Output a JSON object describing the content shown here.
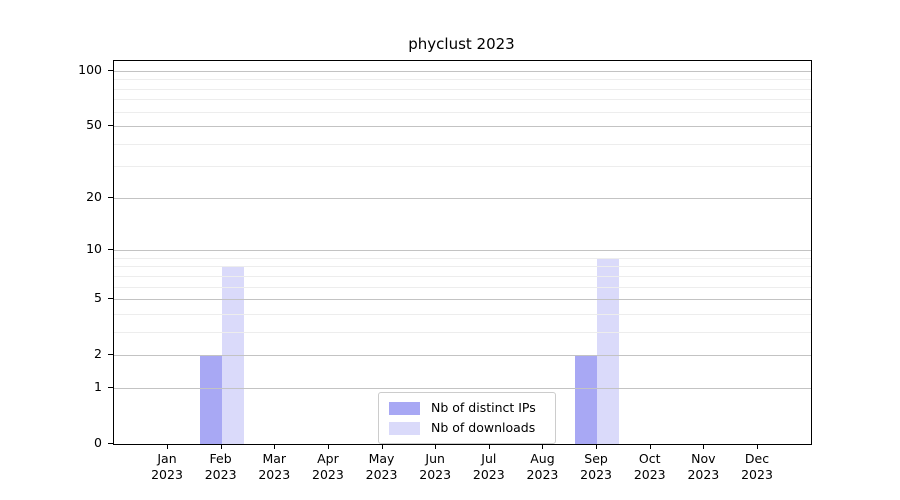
{
  "figure": {
    "title": "phyclust 2023"
  },
  "chart_data": {
    "type": "bar",
    "title": "phyclust 2023",
    "categories": [
      "Jan",
      "Feb",
      "Mar",
      "Apr",
      "May",
      "Jun",
      "Jul",
      "Aug",
      "Sep",
      "Oct",
      "Nov",
      "Dec"
    ],
    "category_sublabel": "2023",
    "series": [
      {
        "name": "Nb of distinct IPs",
        "color": "#a8a8f4",
        "values": [
          0,
          2,
          0,
          0,
          0,
          0,
          0,
          0,
          2,
          0,
          0,
          0
        ]
      },
      {
        "name": "Nb of downloads",
        "color": "#dadafa",
        "values": [
          0,
          8,
          0,
          0,
          0,
          0,
          0,
          0,
          9,
          0,
          0,
          0
        ]
      }
    ],
    "xlabel": "",
    "ylabel": "",
    "y_scale": "log1p",
    "y_axis": {
      "major_ticks": [
        0,
        1,
        2,
        5,
        10,
        20,
        50,
        100
      ],
      "minor_gridlines": [
        3,
        4,
        6,
        7,
        8,
        9,
        30,
        40,
        60,
        70,
        80,
        90
      ],
      "max": 113
    },
    "grid": "both",
    "legend_position": "inside-bottom-center",
    "colors": {
      "major_grid": "#c3c3c3",
      "minor_grid": "#ededed",
      "axis": "#000000",
      "background": "#ffffff"
    }
  }
}
